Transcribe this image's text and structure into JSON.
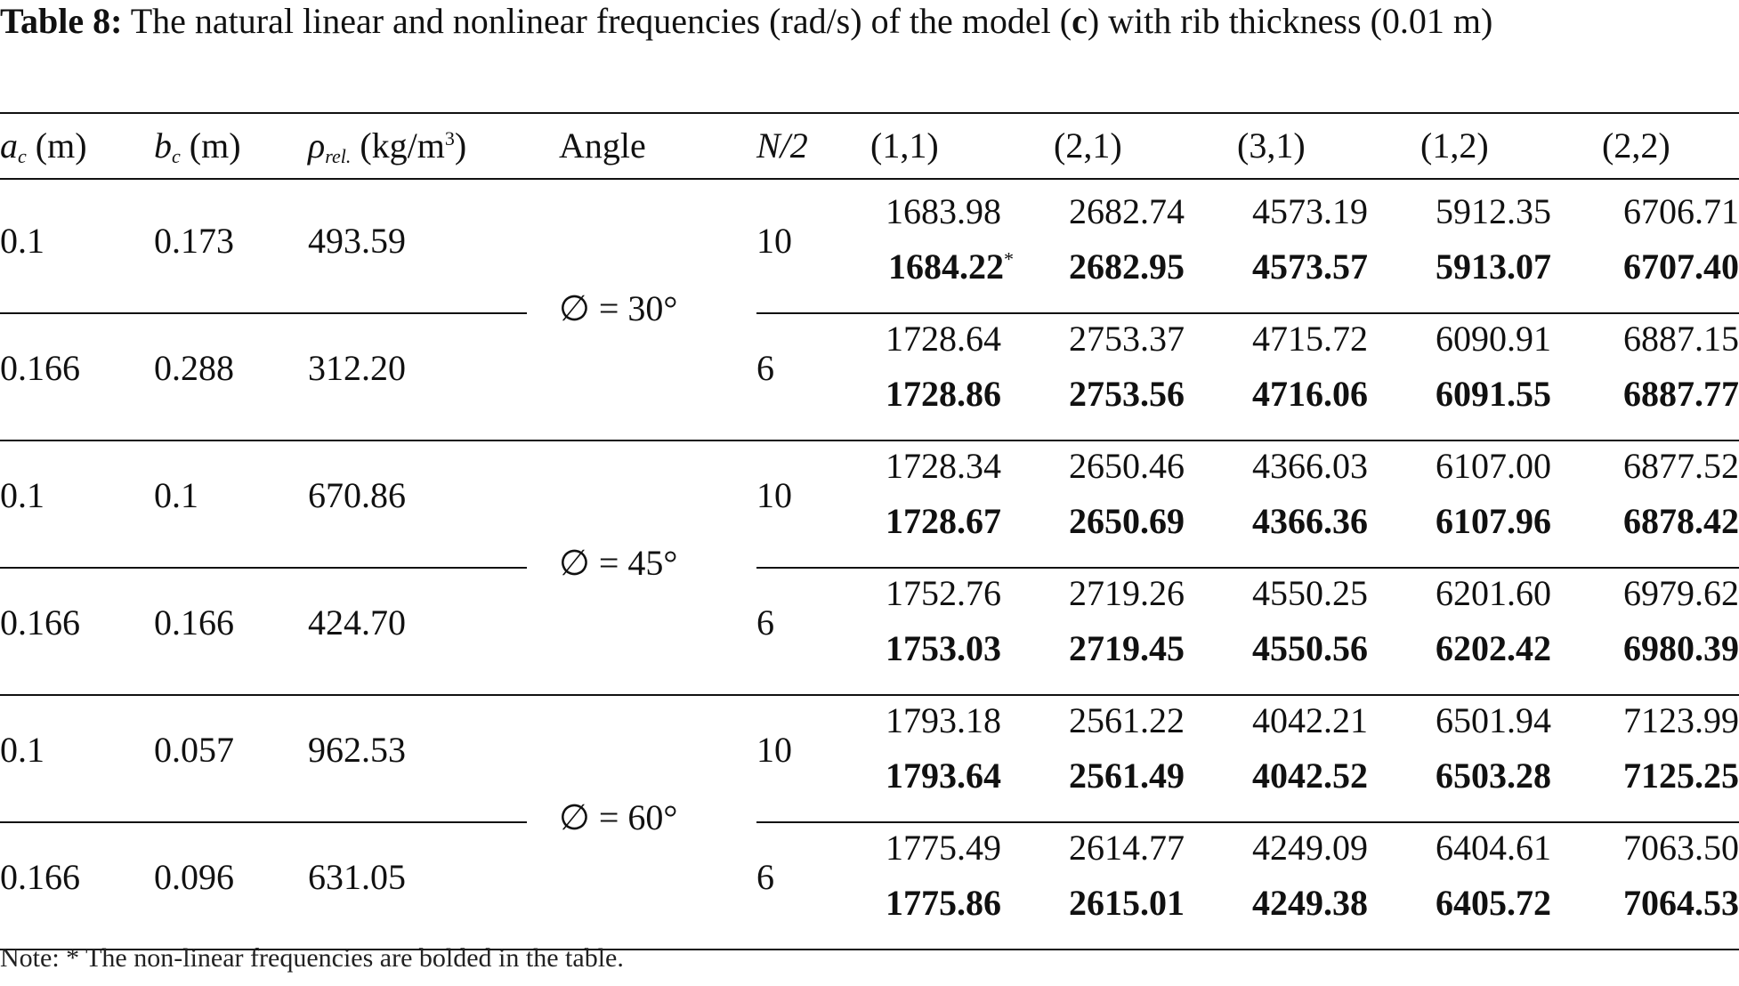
{
  "caption": {
    "label": "Table 8:",
    "text_a": " The natural linear and nonlinear frequencies (rad/s) of the model (",
    "model": "c",
    "text_b": ") with rib thickness (0.01 m)"
  },
  "header": {
    "ac_var": "a",
    "ac_sub": "c",
    "ac_unit": " (m)",
    "bc_var": "b",
    "bc_sub": "c",
    "bc_unit": " (m)",
    "rho_var": "ρ",
    "rho_sub": "rel.",
    "rho_unit_a": " (kg/m",
    "rho_sup": "3",
    "rho_unit_b": ")",
    "angle": "Angle",
    "n2": "N/2",
    "modes": [
      "(1,1)",
      "(2,1)",
      "(3,1)",
      "(1,2)",
      "(2,2)"
    ]
  },
  "groups": [
    {
      "angle": "∅ = 30°",
      "rows": [
        {
          "ac": "0.1",
          "bc": "0.173",
          "rho": "493.59",
          "n2": "10",
          "linear": [
            "1683.98",
            "2682.74",
            "4573.19",
            "5912.35",
            "6706.71"
          ],
          "nonlinear": [
            "1684.22",
            "2682.95",
            "4573.57",
            "5913.07",
            "6707.40"
          ]
        },
        {
          "ac": "0.166",
          "bc": "0.288",
          "rho": "312.20",
          "n2": "6",
          "linear": [
            "1728.64",
            "2753.37",
            "4715.72",
            "6090.91",
            "6887.15"
          ],
          "nonlinear": [
            "1728.86",
            "2753.56",
            "4716.06",
            "6091.55",
            "6887.77"
          ]
        }
      ]
    },
    {
      "angle": "∅ = 45°",
      "rows": [
        {
          "ac": "0.1",
          "bc": "0.1",
          "rho": "670.86",
          "n2": "10",
          "linear": [
            "1728.34",
            "2650.46",
            "4366.03",
            "6107.00",
            "6877.52"
          ],
          "nonlinear": [
            "1728.67",
            "2650.69",
            "4366.36",
            "6107.96",
            "6878.42"
          ]
        },
        {
          "ac": "0.166",
          "bc": "0.166",
          "rho": "424.70",
          "n2": "6",
          "linear": [
            "1752.76",
            "2719.26",
            "4550.25",
            "6201.60",
            "6979.62"
          ],
          "nonlinear": [
            "1753.03",
            "2719.45",
            "4550.56",
            "6202.42",
            "6980.39"
          ]
        }
      ]
    },
    {
      "angle": "∅ = 60°",
      "rows": [
        {
          "ac": "0.1",
          "bc": "0.057",
          "rho": "962.53",
          "n2": "10",
          "linear": [
            "1793.18",
            "2561.22",
            "4042.21",
            "6501.94",
            "7123.99"
          ],
          "nonlinear": [
            "1793.64",
            "2561.49",
            "4042.52",
            "6503.28",
            "7125.25"
          ]
        },
        {
          "ac": "0.166",
          "bc": "0.096",
          "rho": "631.05",
          "n2": "6",
          "linear": [
            "1775.49",
            "2614.77",
            "4249.09",
            "6404.61",
            "7063.50"
          ],
          "nonlinear": [
            "1775.86",
            "2615.01",
            "4249.38",
            "6405.72",
            "7064.53"
          ]
        }
      ]
    }
  ],
  "star_marker": "*",
  "note": "Note: * The non-linear frequencies are bolded in the table."
}
